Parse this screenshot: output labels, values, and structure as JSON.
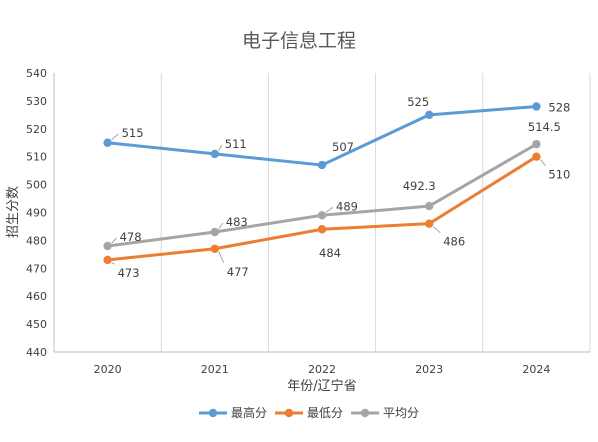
{
  "chart_data": {
    "type": "line",
    "title": "电子信息工程",
    "xlabel": "年份/辽宁省",
    "ylabel": "招生分数",
    "categories": [
      "2020",
      "2021",
      "2022",
      "2023",
      "2024"
    ],
    "ylim": [
      440,
      540
    ],
    "yticks": [
      440,
      450,
      460,
      470,
      480,
      490,
      500,
      510,
      520,
      530,
      540
    ],
    "grid": {
      "vertical": true,
      "horizontal": false
    },
    "legend_position": "bottom",
    "series": [
      {
        "name": "最高分",
        "color": "#5B9BD5",
        "values": [
          515,
          511,
          507,
          525,
          528
        ],
        "labels": [
          "515",
          "511",
          "507",
          "525",
          "528"
        ]
      },
      {
        "name": "最低分",
        "color": "#ED7D31",
        "values": [
          473,
          477,
          484,
          486,
          510
        ],
        "labels": [
          "473",
          "477",
          "484",
          "486",
          "510"
        ]
      },
      {
        "name": "平均分",
        "color": "#A5A5A5",
        "values": [
          478,
          483,
          489,
          492.3,
          514.5
        ],
        "labels": [
          "478",
          "483",
          "489",
          "492.3",
          "514.5"
        ]
      }
    ]
  }
}
